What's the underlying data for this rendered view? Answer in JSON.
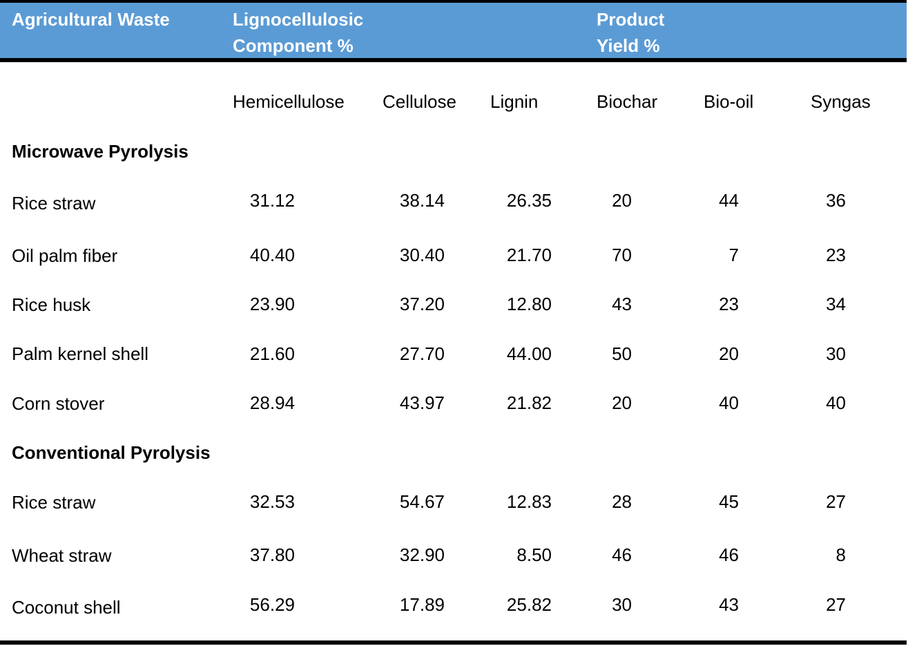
{
  "header": {
    "col1": "Agricultural Waste",
    "col2_line1": "Lignocellulosic",
    "col2_line2": "Component %",
    "col3_line1": "Product",
    "col3_line2": "Yield %"
  },
  "subheaders": [
    "Hemicellulose",
    "Cellulose",
    "Lignin",
    "Biochar",
    "Bio-oil",
    "Syngas"
  ],
  "sections": [
    {
      "title": "Microwave Pyrolysis",
      "rows": [
        {
          "name": "Rice straw",
          "values": [
            "31.12",
            "38.14",
            "26.35",
            "20",
            "44",
            "36"
          ]
        },
        {
          "name": "Oil palm fiber",
          "values": [
            "40.40",
            "30.40",
            "21.70",
            "70",
            "7",
            "23"
          ]
        },
        {
          "name": "Rice husk",
          "values": [
            "23.90",
            "37.20",
            "12.80",
            "43",
            "23",
            "34"
          ]
        },
        {
          "name": "Palm kernel shell",
          "values": [
            "21.60",
            "27.70",
            "44.00",
            "50",
            "20",
            "30"
          ]
        },
        {
          "name": "Corn stover",
          "values": [
            "28.94",
            "43.97",
            "21.82",
            "20",
            "40",
            "40"
          ]
        }
      ]
    },
    {
      "title": "Conventional Pyrolysis",
      "rows": [
        {
          "name": "Rice straw",
          "values": [
            "32.53",
            "54.67",
            "12.83",
            "28",
            "45",
            "27"
          ]
        },
        {
          "name": "Wheat straw",
          "values": [
            "37.80",
            "32.90",
            "8.50",
            "46",
            "46",
            "8"
          ]
        },
        {
          "name": "Coconut shell",
          "values": [
            "56.29",
            "17.89",
            "25.82",
            "30",
            "43",
            "27"
          ]
        }
      ]
    }
  ]
}
